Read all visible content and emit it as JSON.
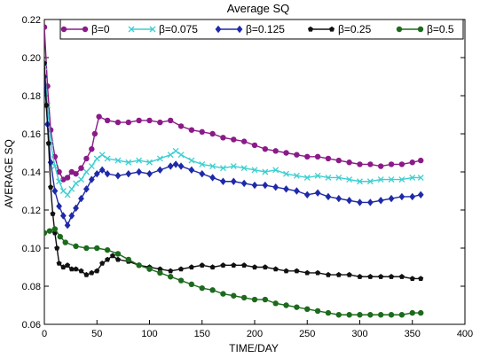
{
  "chart_data": {
    "type": "line",
    "title": "Average SQ",
    "xlabel": "TIME/DAY",
    "ylabel": "AVERAGE SQ",
    "xlim": [
      0,
      400
    ],
    "ylim": [
      0.06,
      0.22
    ],
    "x_ticks": [
      0,
      50,
      100,
      150,
      200,
      250,
      300,
      350,
      400
    ],
    "y_ticks": [
      0.06,
      0.08,
      0.1,
      0.12,
      0.14,
      0.16,
      0.18,
      0.2,
      0.22
    ],
    "x_tick_labels": [
      "0",
      "50",
      "100",
      "150",
      "200",
      "250",
      "300",
      "350",
      "400"
    ],
    "y_tick_labels": [
      "0.06",
      "0.08",
      "0.10",
      "0.12",
      "0.14",
      "0.16",
      "0.18",
      "0.20",
      "0.22"
    ],
    "grid": false,
    "legend_position": "top",
    "series": [
      {
        "name": "β=0",
        "color": "#8b1a89",
        "marker": "circle",
        "points": [
          [
            0,
            0.216
          ],
          [
            3,
            0.185
          ],
          [
            6,
            0.162
          ],
          [
            10,
            0.148
          ],
          [
            14,
            0.14
          ],
          [
            18,
            0.136
          ],
          [
            22,
            0.137
          ],
          [
            26,
            0.14
          ],
          [
            30,
            0.139
          ],
          [
            35,
            0.142
          ],
          [
            40,
            0.147
          ],
          [
            45,
            0.152
          ],
          [
            48,
            0.16
          ],
          [
            52,
            0.169
          ],
          [
            60,
            0.167
          ],
          [
            70,
            0.166
          ],
          [
            80,
            0.166
          ],
          [
            90,
            0.167
          ],
          [
            100,
            0.167
          ],
          [
            110,
            0.166
          ],
          [
            120,
            0.167
          ],
          [
            130,
            0.164
          ],
          [
            140,
            0.162
          ],
          [
            150,
            0.161
          ],
          [
            160,
            0.16
          ],
          [
            170,
            0.158
          ],
          [
            180,
            0.157
          ],
          [
            190,
            0.156
          ],
          [
            200,
            0.154
          ],
          [
            210,
            0.152
          ],
          [
            220,
            0.151
          ],
          [
            230,
            0.15
          ],
          [
            240,
            0.149
          ],
          [
            250,
            0.148
          ],
          [
            260,
            0.148
          ],
          [
            270,
            0.147
          ],
          [
            280,
            0.146
          ],
          [
            290,
            0.145
          ],
          [
            300,
            0.144
          ],
          [
            310,
            0.144
          ],
          [
            320,
            0.143
          ],
          [
            330,
            0.144
          ],
          [
            340,
            0.144
          ],
          [
            350,
            0.145
          ],
          [
            358,
            0.146
          ]
        ]
      },
      {
        "name": "β=0.075",
        "color": "#3ccfd0",
        "marker": "x",
        "points": [
          [
            0,
            0.195
          ],
          [
            3,
            0.175
          ],
          [
            6,
            0.155
          ],
          [
            10,
            0.143
          ],
          [
            14,
            0.135
          ],
          [
            18,
            0.13
          ],
          [
            22,
            0.128
          ],
          [
            26,
            0.131
          ],
          [
            30,
            0.134
          ],
          [
            35,
            0.136
          ],
          [
            40,
            0.14
          ],
          [
            45,
            0.143
          ],
          [
            50,
            0.147
          ],
          [
            55,
            0.149
          ],
          [
            60,
            0.147
          ],
          [
            70,
            0.146
          ],
          [
            80,
            0.145
          ],
          [
            90,
            0.146
          ],
          [
            100,
            0.145
          ],
          [
            110,
            0.147
          ],
          [
            120,
            0.149
          ],
          [
            125,
            0.151
          ],
          [
            130,
            0.149
          ],
          [
            140,
            0.146
          ],
          [
            150,
            0.144
          ],
          [
            160,
            0.143
          ],
          [
            170,
            0.142
          ],
          [
            180,
            0.143
          ],
          [
            190,
            0.142
          ],
          [
            200,
            0.141
          ],
          [
            210,
            0.14
          ],
          [
            220,
            0.141
          ],
          [
            230,
            0.139
          ],
          [
            240,
            0.138
          ],
          [
            250,
            0.137
          ],
          [
            260,
            0.138
          ],
          [
            270,
            0.137
          ],
          [
            280,
            0.137
          ],
          [
            290,
            0.136
          ],
          [
            300,
            0.135
          ],
          [
            310,
            0.135
          ],
          [
            320,
            0.136
          ],
          [
            330,
            0.136
          ],
          [
            340,
            0.136
          ],
          [
            350,
            0.137
          ],
          [
            358,
            0.137
          ]
        ]
      },
      {
        "name": "β=0.125",
        "color": "#1e2aa8",
        "marker": "diamond",
        "points": [
          [
            0,
            0.19
          ],
          [
            3,
            0.165
          ],
          [
            6,
            0.145
          ],
          [
            10,
            0.13
          ],
          [
            14,
            0.122
          ],
          [
            18,
            0.117
          ],
          [
            22,
            0.112
          ],
          [
            26,
            0.117
          ],
          [
            30,
            0.121
          ],
          [
            35,
            0.126
          ],
          [
            40,
            0.131
          ],
          [
            45,
            0.136
          ],
          [
            50,
            0.139
          ],
          [
            55,
            0.141
          ],
          [
            60,
            0.139
          ],
          [
            70,
            0.138
          ],
          [
            80,
            0.139
          ],
          [
            90,
            0.14
          ],
          [
            100,
            0.139
          ],
          [
            110,
            0.141
          ],
          [
            120,
            0.143
          ],
          [
            125,
            0.144
          ],
          [
            130,
            0.143
          ],
          [
            140,
            0.141
          ],
          [
            150,
            0.139
          ],
          [
            160,
            0.137
          ],
          [
            170,
            0.135
          ],
          [
            180,
            0.135
          ],
          [
            190,
            0.134
          ],
          [
            200,
            0.133
          ],
          [
            210,
            0.133
          ],
          [
            220,
            0.132
          ],
          [
            230,
            0.131
          ],
          [
            240,
            0.13
          ],
          [
            250,
            0.128
          ],
          [
            260,
            0.129
          ],
          [
            270,
            0.127
          ],
          [
            280,
            0.126
          ],
          [
            290,
            0.125
          ],
          [
            300,
            0.124
          ],
          [
            310,
            0.124
          ],
          [
            320,
            0.125
          ],
          [
            330,
            0.126
          ],
          [
            340,
            0.127
          ],
          [
            350,
            0.127
          ],
          [
            358,
            0.128
          ]
        ]
      },
      {
        "name": "β=0.25",
        "color": "#111111",
        "marker": "pentagon",
        "points": [
          [
            0,
            0.197
          ],
          [
            2,
            0.175
          ],
          [
            4,
            0.155
          ],
          [
            6,
            0.132
          ],
          [
            8,
            0.118
          ],
          [
            10,
            0.108
          ],
          [
            12,
            0.1
          ],
          [
            14,
            0.092
          ],
          [
            18,
            0.09
          ],
          [
            22,
            0.091
          ],
          [
            26,
            0.089
          ],
          [
            30,
            0.089
          ],
          [
            35,
            0.088
          ],
          [
            40,
            0.086
          ],
          [
            45,
            0.087
          ],
          [
            50,
            0.088
          ],
          [
            55,
            0.092
          ],
          [
            60,
            0.094
          ],
          [
            65,
            0.096
          ],
          [
            70,
            0.094
          ],
          [
            80,
            0.093
          ],
          [
            90,
            0.091
          ],
          [
            100,
            0.09
          ],
          [
            110,
            0.089
          ],
          [
            120,
            0.088
          ],
          [
            130,
            0.089
          ],
          [
            140,
            0.09
          ],
          [
            150,
            0.091
          ],
          [
            160,
            0.09
          ],
          [
            170,
            0.091
          ],
          [
            180,
            0.091
          ],
          [
            190,
            0.091
          ],
          [
            200,
            0.09
          ],
          [
            210,
            0.09
          ],
          [
            220,
            0.089
          ],
          [
            230,
            0.088
          ],
          [
            240,
            0.088
          ],
          [
            250,
            0.087
          ],
          [
            260,
            0.087
          ],
          [
            270,
            0.086
          ],
          [
            280,
            0.086
          ],
          [
            290,
            0.086
          ],
          [
            300,
            0.085
          ],
          [
            310,
            0.085
          ],
          [
            320,
            0.085
          ],
          [
            330,
            0.085
          ],
          [
            340,
            0.085
          ],
          [
            350,
            0.084
          ],
          [
            358,
            0.084
          ]
        ]
      },
      {
        "name": "β=0.5",
        "color": "#1c6a1c",
        "marker": "circle",
        "points": [
          [
            0,
            0.108
          ],
          [
            5,
            0.109
          ],
          [
            10,
            0.11
          ],
          [
            15,
            0.106
          ],
          [
            20,
            0.103
          ],
          [
            30,
            0.101
          ],
          [
            40,
            0.1
          ],
          [
            50,
            0.1
          ],
          [
            60,
            0.099
          ],
          [
            70,
            0.097
          ],
          [
            80,
            0.094
          ],
          [
            90,
            0.091
          ],
          [
            100,
            0.089
          ],
          [
            110,
            0.087
          ],
          [
            120,
            0.085
          ],
          [
            130,
            0.083
          ],
          [
            140,
            0.081
          ],
          [
            150,
            0.079
          ],
          [
            160,
            0.078
          ],
          [
            170,
            0.076
          ],
          [
            180,
            0.075
          ],
          [
            190,
            0.074
          ],
          [
            200,
            0.073
          ],
          [
            210,
            0.073
          ],
          [
            220,
            0.071
          ],
          [
            230,
            0.07
          ],
          [
            240,
            0.069
          ],
          [
            250,
            0.068
          ],
          [
            260,
            0.067
          ],
          [
            270,
            0.066
          ],
          [
            280,
            0.065
          ],
          [
            290,
            0.065
          ],
          [
            300,
            0.065
          ],
          [
            310,
            0.065
          ],
          [
            320,
            0.065
          ],
          [
            330,
            0.065
          ],
          [
            340,
            0.065
          ],
          [
            350,
            0.066
          ],
          [
            358,
            0.066
          ]
        ]
      }
    ]
  }
}
